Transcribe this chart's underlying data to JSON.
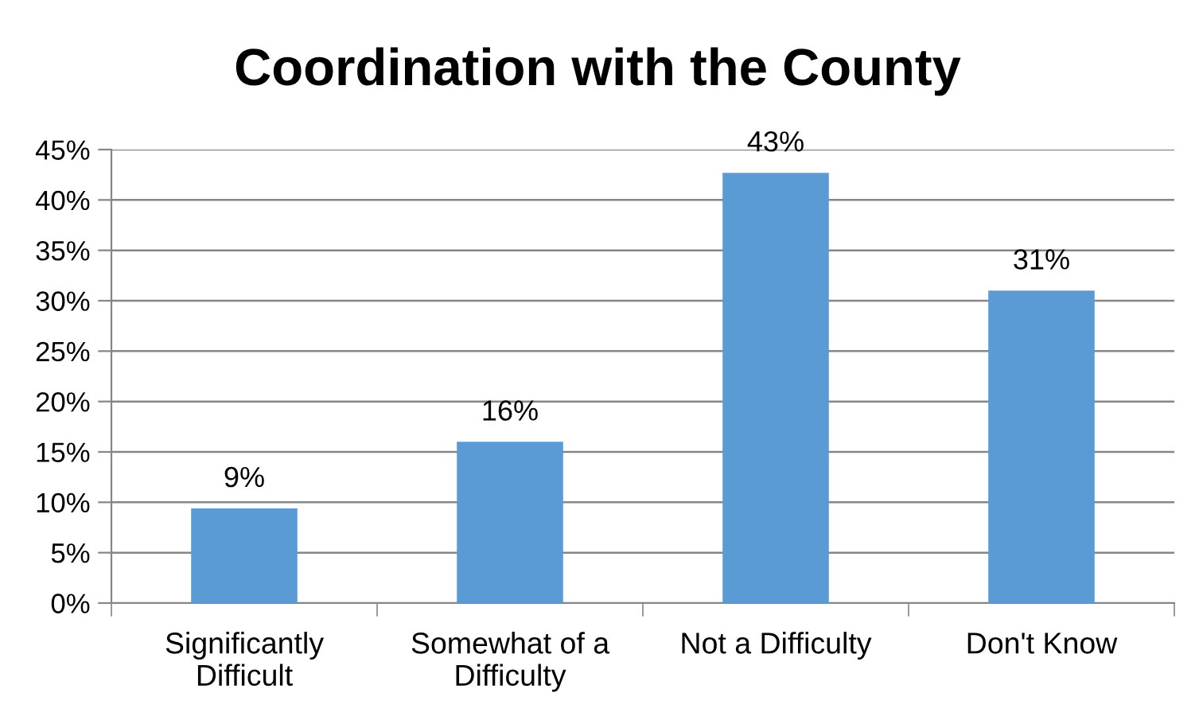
{
  "chart_data": {
    "type": "bar",
    "title": "Coordination with the County",
    "categories": [
      "Significantly\nDifficult",
      "Somewhat of a\nDifficulty",
      "Not a Difficulty",
      "Don't Know"
    ],
    "values": [
      9.4,
      16,
      42.7,
      31
    ],
    "color": "#5b9bd5",
    "value_labels": [
      "9%",
      "16%",
      "43%",
      "31%"
    ],
    "ylim": [
      0,
      45
    ],
    "yticks": [
      {
        "value": 0,
        "label": "0%"
      },
      {
        "value": 5,
        "label": "5%"
      },
      {
        "value": 10,
        "label": "10%"
      },
      {
        "value": 15,
        "label": "15%"
      },
      {
        "value": 20,
        "label": "20%"
      },
      {
        "value": 25,
        "label": "25%"
      },
      {
        "value": 30,
        "label": "30%"
      },
      {
        "value": 35,
        "label": "35%"
      },
      {
        "value": 40,
        "label": "40%"
      },
      {
        "value": 45,
        "label": "45%"
      }
    ],
    "grid": "y",
    "legend": false
  }
}
